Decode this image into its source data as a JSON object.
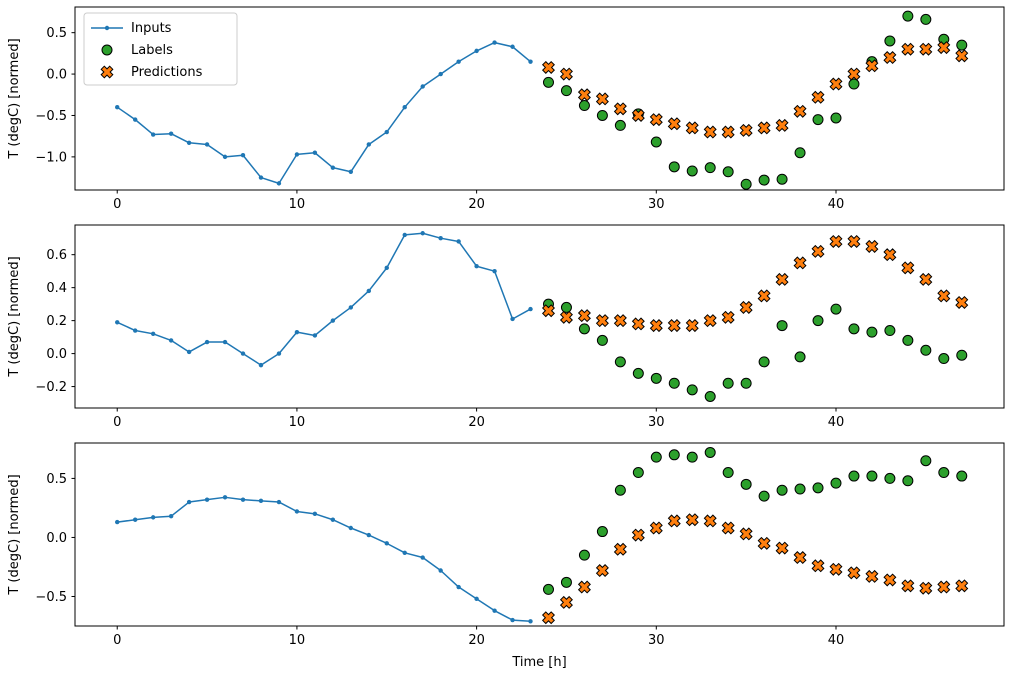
{
  "figure": {
    "background": "#ffffff",
    "xlabel": "Time [h]",
    "legend": {
      "entries": [
        "Inputs",
        "Labels",
        "Predictions"
      ],
      "position": "upper-left-of-first-subplot"
    },
    "colors": {
      "inputs": "#1f77b4",
      "labels": "#2ca02c",
      "predictions": "#ff7f0e",
      "marker_edge": "#000000",
      "legend_border": "#cccccc"
    }
  },
  "chart_data": [
    {
      "type": "line+scatter",
      "ylabel": "T (degC) [normed]",
      "xlabel": "",
      "legend": true,
      "grid": false,
      "xlim": [
        -2.35,
        49.35
      ],
      "ylim": [
        -1.4,
        0.81
      ],
      "xticks": [
        0,
        10,
        20,
        30,
        40
      ],
      "xticklabels": [
        "0",
        "10",
        "20",
        "30",
        "40"
      ],
      "yticks": [
        0.5,
        0.0,
        -0.5,
        -1.0
      ],
      "yticklabels": [
        "0.5",
        "0.0",
        "−0.5",
        "−1.0"
      ],
      "series": [
        {
          "name": "Inputs",
          "marker": "dot-line",
          "x": [
            0,
            1,
            2,
            3,
            4,
            5,
            6,
            7,
            8,
            9,
            10,
            11,
            12,
            13,
            14,
            15,
            16,
            17,
            18,
            19,
            20,
            21,
            22,
            23
          ],
          "values": [
            -0.4,
            -0.55,
            -0.73,
            -0.72,
            -0.83,
            -0.85,
            -1.0,
            -0.98,
            -1.25,
            -1.32,
            -0.97,
            -0.95,
            -1.13,
            -1.18,
            -0.85,
            -0.7,
            -0.4,
            -0.15,
            0.0,
            0.15,
            0.28,
            0.38,
            0.33,
            0.15
          ]
        },
        {
          "name": "Labels",
          "marker": "circle",
          "x": [
            24,
            25,
            26,
            27,
            28,
            29,
            30,
            31,
            32,
            33,
            34,
            35,
            36,
            37,
            38,
            39,
            40,
            41,
            42,
            43,
            44,
            45,
            46,
            47
          ],
          "values": [
            -0.1,
            -0.2,
            -0.38,
            -0.5,
            -0.62,
            -0.48,
            -0.82,
            -1.12,
            -1.17,
            -1.13,
            -1.18,
            -1.33,
            -1.28,
            -1.27,
            -0.95,
            -0.55,
            -0.53,
            -0.12,
            0.15,
            0.4,
            0.7,
            0.66,
            0.42,
            0.35
          ]
        },
        {
          "name": "Predictions",
          "marker": "x",
          "x": [
            24,
            25,
            26,
            27,
            28,
            29,
            30,
            31,
            32,
            33,
            34,
            35,
            36,
            37,
            38,
            39,
            40,
            41,
            42,
            43,
            44,
            45,
            46,
            47
          ],
          "values": [
            0.08,
            0.0,
            -0.25,
            -0.3,
            -0.42,
            -0.5,
            -0.55,
            -0.6,
            -0.65,
            -0.7,
            -0.7,
            -0.68,
            -0.65,
            -0.62,
            -0.45,
            -0.28,
            -0.12,
            0.0,
            0.1,
            0.2,
            0.3,
            0.3,
            0.32,
            0.22
          ]
        }
      ]
    },
    {
      "type": "line+scatter",
      "ylabel": "T (degC) [normed]",
      "xlabel": "",
      "legend": false,
      "grid": false,
      "xlim": [
        -2.35,
        49.35
      ],
      "ylim": [
        -0.33,
        0.78
      ],
      "xticks": [
        0,
        10,
        20,
        30,
        40
      ],
      "xticklabels": [
        "0",
        "10",
        "20",
        "30",
        "40"
      ],
      "yticks": [
        0.6,
        0.4,
        0.2,
        0.0,
        -0.2
      ],
      "yticklabels": [
        "0.6",
        "0.4",
        "0.2",
        "0.0",
        "−0.2"
      ],
      "series": [
        {
          "name": "Inputs",
          "marker": "dot-line",
          "x": [
            0,
            1,
            2,
            3,
            4,
            5,
            6,
            7,
            8,
            9,
            10,
            11,
            12,
            13,
            14,
            15,
            16,
            17,
            18,
            19,
            20,
            21,
            22,
            23
          ],
          "values": [
            0.19,
            0.14,
            0.12,
            0.08,
            0.01,
            0.07,
            0.07,
            0.0,
            -0.07,
            0.0,
            0.13,
            0.11,
            0.2,
            0.28,
            0.38,
            0.52,
            0.72,
            0.73,
            0.7,
            0.68,
            0.53,
            0.5,
            0.21,
            0.27
          ]
        },
        {
          "name": "Labels",
          "marker": "circle",
          "x": [
            24,
            25,
            26,
            27,
            28,
            29,
            30,
            31,
            32,
            33,
            34,
            35,
            36,
            37,
            38,
            39,
            40,
            41,
            42,
            43,
            44,
            45,
            46,
            47
          ],
          "values": [
            0.3,
            0.28,
            0.15,
            0.08,
            -0.05,
            -0.12,
            -0.15,
            -0.18,
            -0.22,
            -0.26,
            -0.18,
            -0.18,
            -0.05,
            0.17,
            -0.02,
            0.2,
            0.27,
            0.15,
            0.13,
            0.14,
            0.08,
            0.02,
            -0.03,
            -0.01
          ]
        },
        {
          "name": "Predictions",
          "marker": "x",
          "x": [
            24,
            25,
            26,
            27,
            28,
            29,
            30,
            31,
            32,
            33,
            34,
            35,
            36,
            37,
            38,
            39,
            40,
            41,
            42,
            43,
            44,
            45,
            46,
            47
          ],
          "values": [
            0.26,
            0.22,
            0.23,
            0.2,
            0.2,
            0.18,
            0.17,
            0.17,
            0.17,
            0.2,
            0.22,
            0.28,
            0.35,
            0.45,
            0.55,
            0.62,
            0.68,
            0.68,
            0.65,
            0.6,
            0.52,
            0.45,
            0.35,
            0.31
          ]
        }
      ]
    },
    {
      "type": "line+scatter",
      "ylabel": "T (degC) [normed]",
      "xlabel": "Time [h]",
      "legend": false,
      "grid": false,
      "xlim": [
        -2.35,
        49.35
      ],
      "ylim": [
        -0.75,
        0.8
      ],
      "xticks": [
        0,
        10,
        20,
        30,
        40
      ],
      "xticklabels": [
        "0",
        "10",
        "20",
        "30",
        "40"
      ],
      "yticks": [
        0.5,
        0.0,
        -0.5
      ],
      "yticklabels": [
        "0.5",
        "0.0",
        "−0.5"
      ],
      "series": [
        {
          "name": "Inputs",
          "marker": "dot-line",
          "x": [
            0,
            1,
            2,
            3,
            4,
            5,
            6,
            7,
            8,
            9,
            10,
            11,
            12,
            13,
            14,
            15,
            16,
            17,
            18,
            19,
            20,
            21,
            22,
            23
          ],
          "values": [
            0.13,
            0.15,
            0.17,
            0.18,
            0.3,
            0.32,
            0.34,
            0.32,
            0.31,
            0.3,
            0.22,
            0.2,
            0.15,
            0.08,
            0.02,
            -0.05,
            -0.13,
            -0.17,
            -0.28,
            -0.42,
            -0.52,
            -0.62,
            -0.7,
            -0.71
          ]
        },
        {
          "name": "Labels",
          "marker": "circle",
          "x": [
            24,
            25,
            26,
            27,
            28,
            29,
            30,
            31,
            32,
            33,
            34,
            35,
            36,
            37,
            38,
            39,
            40,
            41,
            42,
            43,
            44,
            45,
            46,
            47
          ],
          "values": [
            -0.44,
            -0.38,
            -0.15,
            0.05,
            0.4,
            0.55,
            0.68,
            0.7,
            0.68,
            0.72,
            0.55,
            0.45,
            0.35,
            0.4,
            0.41,
            0.42,
            0.46,
            0.52,
            0.52,
            0.5,
            0.48,
            0.65,
            0.55,
            0.52
          ]
        },
        {
          "name": "Predictions",
          "marker": "x",
          "x": [
            24,
            25,
            26,
            27,
            28,
            29,
            30,
            31,
            32,
            33,
            34,
            35,
            36,
            37,
            38,
            39,
            40,
            41,
            42,
            43,
            44,
            45,
            46,
            47
          ],
          "values": [
            -0.68,
            -0.55,
            -0.42,
            -0.28,
            -0.1,
            0.02,
            0.08,
            0.14,
            0.15,
            0.14,
            0.08,
            0.03,
            -0.05,
            -0.09,
            -0.17,
            -0.24,
            -0.27,
            -0.3,
            -0.33,
            -0.36,
            -0.41,
            -0.43,
            -0.42,
            -0.41
          ]
        }
      ]
    }
  ]
}
